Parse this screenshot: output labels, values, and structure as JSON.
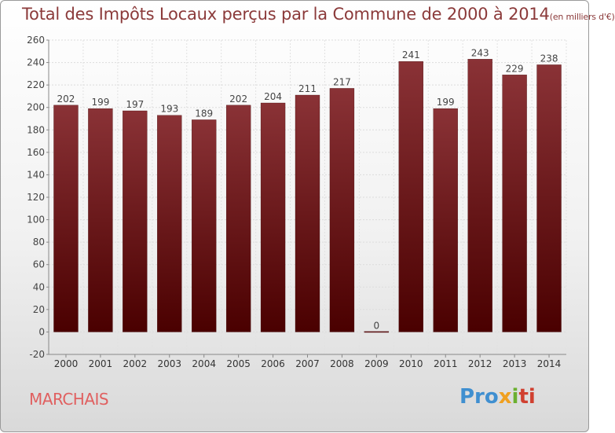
{
  "header": {
    "title": "Total des Impôts Locaux perçus par la Commune de 2000 à 2014",
    "unit": "(en milliers d'€)"
  },
  "footer": {
    "commune": "MARCHAIS",
    "logo": [
      "Pro",
      "x",
      "i",
      "ti"
    ]
  },
  "colors": {
    "bar": "#6b1a1a",
    "title": "#8b3a3a",
    "commune": "#e06060"
  },
  "chart_data": {
    "type": "bar",
    "title": "Total des Impôts Locaux perçus par la Commune de 2000 à 2014 (en milliers d'€)",
    "xlabel": "",
    "ylabel": "",
    "categories": [
      "2000",
      "2001",
      "2002",
      "2003",
      "2004",
      "2005",
      "2006",
      "2007",
      "2008",
      "2009",
      "2010",
      "2011",
      "2012",
      "2013",
      "2014"
    ],
    "values": [
      202,
      199,
      197,
      193,
      189,
      202,
      204,
      211,
      217,
      0,
      241,
      199,
      243,
      229,
      238
    ],
    "ylim": [
      -20,
      260
    ],
    "yticks": [
      -20,
      0,
      20,
      40,
      60,
      80,
      100,
      120,
      140,
      160,
      180,
      200,
      220,
      240,
      260
    ],
    "grid": true
  }
}
